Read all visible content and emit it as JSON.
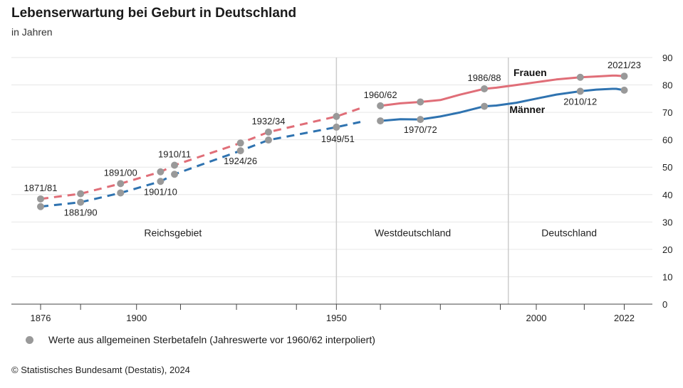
{
  "header": {
    "title": "Lebenserwartung bei Geburt in Deutschland",
    "subtitle": "in Jahren"
  },
  "legend": {
    "label": "Werte aus allgemeinen Sterbetafeln (Jahreswerte vor 1960/62 interpoliert)"
  },
  "source": "© Statistisches Bundesamt (Destatis), 2024",
  "colors": {
    "frauen": "#e06e78",
    "maenner": "#2f73b0",
    "marker": "#999999",
    "grid": "#e6e6e6",
    "divider": "#cccccc"
  },
  "chart_data": {
    "type": "line",
    "xlim": [
      1869,
      2030
    ],
    "ylim": [
      0,
      90
    ],
    "yticks": [
      0,
      10,
      20,
      30,
      40,
      50,
      60,
      70,
      80,
      90
    ],
    "xticks": [
      {
        "value": 1876,
        "label": "1876"
      },
      {
        "value": 1900,
        "label": "1900"
      },
      {
        "value": 1950,
        "label": "1950"
      },
      {
        "value": 2000,
        "label": "2000"
      },
      {
        "value": 2022,
        "label": "2022"
      }
    ],
    "minor_xticks": [
      1886,
      1911,
      1925,
      1940,
      1961,
      1976,
      1991,
      2012
    ],
    "grid": true,
    "y_axis_side": "right",
    "series": [
      {
        "name": "Frauen",
        "color": "#e06e78",
        "dashed": {
          "x": [
            1876,
            1886,
            1896,
            1906,
            1909.5,
            1926,
            1933,
            1950,
            1956
          ],
          "y": [
            38.4,
            40.3,
            44.0,
            48.3,
            50.7,
            58.8,
            62.8,
            68.5,
            71.5
          ]
        },
        "solid": {
          "x": [
            1961,
            1966,
            1971,
            1976,
            1981,
            1987,
            1990,
            1995,
            2000,
            2005,
            2011,
            2015,
            2019,
            2020,
            2022
          ],
          "y": [
            72.4,
            73.3,
            73.8,
            74.5,
            76.5,
            78.6,
            79.0,
            80.0,
            81.0,
            82.0,
            82.8,
            83.1,
            83.4,
            83.4,
            83.2
          ]
        }
      },
      {
        "name": "Männer",
        "color": "#2f73b0",
        "dashed": {
          "x": [
            1876,
            1886,
            1896,
            1906,
            1909.5,
            1926,
            1933,
            1950,
            1956
          ],
          "y": [
            35.6,
            37.2,
            40.6,
            44.8,
            47.4,
            56.0,
            59.9,
            64.6,
            66.5
          ]
        },
        "solid": {
          "x": [
            1961,
            1966,
            1971,
            1976,
            1981,
            1987,
            1990,
            1995,
            2000,
            2005,
            2011,
            2015,
            2019,
            2020,
            2022
          ],
          "y": [
            66.9,
            67.5,
            67.4,
            68.5,
            70.0,
            72.2,
            72.5,
            73.5,
            75.0,
            76.5,
            77.7,
            78.3,
            78.6,
            78.6,
            78.1
          ]
        }
      }
    ],
    "markers": {
      "frauen": [
        {
          "x": 1876,
          "y": 38.4
        },
        {
          "x": 1886,
          "y": 40.3
        },
        {
          "x": 1896,
          "y": 44.0
        },
        {
          "x": 1906,
          "y": 48.3
        },
        {
          "x": 1909.5,
          "y": 50.7
        },
        {
          "x": 1926,
          "y": 58.8
        },
        {
          "x": 1933,
          "y": 62.8
        },
        {
          "x": 1950,
          "y": 68.5
        },
        {
          "x": 1961,
          "y": 72.4
        },
        {
          "x": 1971,
          "y": 73.8
        },
        {
          "x": 1987,
          "y": 78.6
        },
        {
          "x": 2011,
          "y": 82.8
        },
        {
          "x": 2022,
          "y": 83.2
        }
      ],
      "maenner": [
        {
          "x": 1876,
          "y": 35.6
        },
        {
          "x": 1886,
          "y": 37.2
        },
        {
          "x": 1896,
          "y": 40.6
        },
        {
          "x": 1906,
          "y": 44.8
        },
        {
          "x": 1909.5,
          "y": 47.4
        },
        {
          "x": 1926,
          "y": 56.0
        },
        {
          "x": 1933,
          "y": 59.9
        },
        {
          "x": 1950,
          "y": 64.6
        },
        {
          "x": 1961,
          "y": 66.9
        },
        {
          "x": 1971,
          "y": 67.4
        },
        {
          "x": 1987,
          "y": 72.2
        },
        {
          "x": 2011,
          "y": 77.7
        },
        {
          "x": 2022,
          "y": 78.1
        }
      ]
    },
    "period_labels": [
      {
        "text": "1871/81",
        "x": 1876,
        "y": 38.4,
        "pos": "above"
      },
      {
        "text": "1881/90",
        "x": 1886,
        "y": 37.2,
        "pos": "below"
      },
      {
        "text": "1891/00",
        "x": 1896,
        "y": 44.0,
        "pos": "above"
      },
      {
        "text": "1901/10",
        "x": 1906,
        "y": 44.8,
        "pos": "below"
      },
      {
        "text": "1910/11",
        "x": 1909.5,
        "y": 50.7,
        "pos": "above"
      },
      {
        "text": "1924/26",
        "x": 1926,
        "y": 56.0,
        "pos": "below"
      },
      {
        "text": "1932/34",
        "x": 1933,
        "y": 62.8,
        "pos": "above"
      },
      {
        "text": "1949/51",
        "x": 1950,
        "y": 64.6,
        "pos": "below"
      },
      {
        "text": "1960/62",
        "x": 1961,
        "y": 72.4,
        "pos": "above"
      },
      {
        "text": "1970/72",
        "x": 1971,
        "y": 67.4,
        "pos": "below"
      },
      {
        "text": "1986/88",
        "x": 1987,
        "y": 78.6,
        "pos": "above"
      },
      {
        "text": "2010/12",
        "x": 2011,
        "y": 77.7,
        "pos": "below"
      },
      {
        "text": "2021/23",
        "x": 2022,
        "y": 83.2,
        "pos": "above"
      }
    ],
    "series_labels": [
      {
        "text": "Frauen",
        "x": 2000,
        "y": 83.5
      },
      {
        "text": "Männer",
        "x": 1999,
        "y": 70.0
      }
    ],
    "region_labels": [
      {
        "text": "Reichsgebiet",
        "x": 1910,
        "y": 25
      },
      {
        "text": "Westdeutschland",
        "x": 1970,
        "y": 25
      },
      {
        "text": "Deutschland",
        "x": 2010,
        "y": 25
      }
    ],
    "dividers": [
      1950,
      1993
    ]
  }
}
